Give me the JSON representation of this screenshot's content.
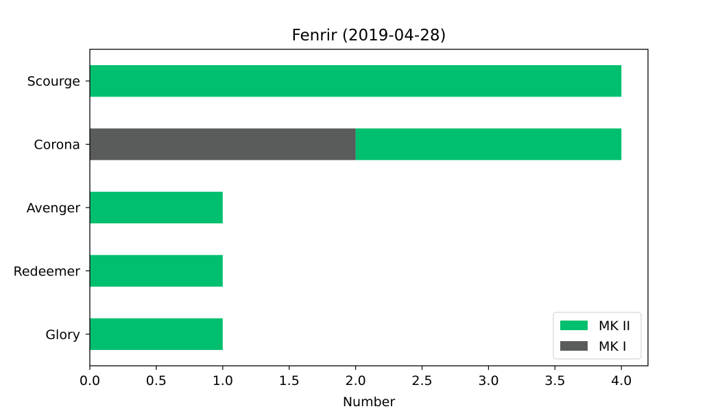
{
  "chart_data": {
    "type": "bar",
    "orientation": "horizontal",
    "stacked": true,
    "title": "Fenrir (2019-04-28)",
    "xlabel": "Number",
    "ylabel": "",
    "categories": [
      "Scourge",
      "Corona",
      "Avenger",
      "Redeemer",
      "Glory"
    ],
    "series": [
      {
        "name": "MK I",
        "color": "#5a5c5b",
        "values": [
          0,
          2,
          0,
          0,
          0
        ]
      },
      {
        "name": "MK II",
        "color": "#00bf6f",
        "values": [
          4,
          2,
          1,
          1,
          1
        ]
      }
    ],
    "xlim": [
      0,
      4.2
    ],
    "xticks": [
      "0.0",
      "0.5",
      "1.0",
      "1.5",
      "2.0",
      "2.5",
      "3.0",
      "3.5",
      "4.0"
    ],
    "grid": false,
    "legend": {
      "position": "lower right",
      "order": [
        "MK II",
        "MK I"
      ]
    }
  }
}
